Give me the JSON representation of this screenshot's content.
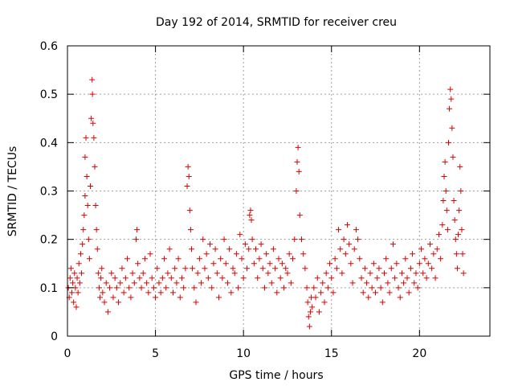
{
  "chart_data": {
    "type": "scatter",
    "title": "Day 192 of 2014, SRMTID for receiver creu",
    "xlabel": "GPS time / hours",
    "ylabel": "SRMTID / TECUs",
    "xlim": [
      0,
      24
    ],
    "ylim": [
      0,
      0.6
    ],
    "x_ticks": [
      0,
      5,
      10,
      15,
      20
    ],
    "x_tick_labels": [
      "0",
      "5",
      "10",
      "15",
      "20"
    ],
    "y_ticks": [
      0,
      0.1,
      0.2,
      0.3,
      0.4,
      0.5,
      0.6
    ],
    "y_tick_labels": [
      "0",
      "0.1",
      "0.2",
      "0.3",
      "0.4",
      "0.5",
      "0.6"
    ],
    "grid": true,
    "marker": "plus",
    "color": "#e00000",
    "series": [
      {
        "name": "SRMTID",
        "sampling": "representative subset of points read from the plot",
        "points": [
          [
            0.05,
            0.1
          ],
          [
            0.1,
            0.08
          ],
          [
            0.15,
            0.12
          ],
          [
            0.2,
            0.14
          ],
          [
            0.25,
            0.09
          ],
          [
            0.3,
            0.11
          ],
          [
            0.35,
            0.07
          ],
          [
            0.4,
            0.13
          ],
          [
            0.45,
            0.1
          ],
          [
            0.5,
            0.06
          ],
          [
            0.55,
            0.12
          ],
          [
            0.6,
            0.09
          ],
          [
            0.65,
            0.15
          ],
          [
            0.7,
            0.11
          ],
          [
            0.75,
            0.17
          ],
          [
            0.8,
            0.13
          ],
          [
            0.85,
            0.19
          ],
          [
            0.9,
            0.22
          ],
          [
            0.95,
            0.25
          ],
          [
            1.0,
            0.29
          ],
          [
            1.0,
            0.37
          ],
          [
            1.05,
            0.41
          ],
          [
            1.1,
            0.33
          ],
          [
            1.15,
            0.27
          ],
          [
            1.2,
            0.2
          ],
          [
            1.25,
            0.16
          ],
          [
            1.3,
            0.31
          ],
          [
            1.35,
            0.45
          ],
          [
            1.4,
            0.53
          ],
          [
            1.42,
            0.5
          ],
          [
            1.45,
            0.44
          ],
          [
            1.5,
            0.41
          ],
          [
            1.55,
            0.35
          ],
          [
            1.6,
            0.27
          ],
          [
            1.65,
            0.22
          ],
          [
            1.7,
            0.18
          ],
          [
            1.75,
            0.13
          ],
          [
            1.8,
            0.1
          ],
          [
            1.85,
            0.08
          ],
          [
            1.9,
            0.12
          ],
          [
            1.95,
            0.14
          ],
          [
            2.0,
            0.09
          ],
          [
            2.1,
            0.07
          ],
          [
            2.2,
            0.11
          ],
          [
            2.3,
            0.05
          ],
          [
            2.4,
            0.1
          ],
          [
            2.5,
            0.13
          ],
          [
            2.6,
            0.08
          ],
          [
            2.7,
            0.12
          ],
          [
            2.8,
            0.1
          ],
          [
            2.9,
            0.07
          ],
          [
            3.0,
            0.11
          ],
          [
            3.1,
            0.14
          ],
          [
            3.2,
            0.09
          ],
          [
            3.3,
            0.12
          ],
          [
            3.4,
            0.16
          ],
          [
            3.5,
            0.1
          ],
          [
            3.6,
            0.08
          ],
          [
            3.7,
            0.13
          ],
          [
            3.8,
            0.11
          ],
          [
            3.9,
            0.2
          ],
          [
            3.95,
            0.22
          ],
          [
            4.0,
            0.15
          ],
          [
            4.1,
            0.12
          ],
          [
            4.2,
            0.1
          ],
          [
            4.3,
            0.13
          ],
          [
            4.4,
            0.16
          ],
          [
            4.5,
            0.11
          ],
          [
            4.6,
            0.09
          ],
          [
            4.7,
            0.17
          ],
          [
            4.8,
            0.12
          ],
          [
            4.9,
            0.1
          ],
          [
            5.0,
            0.08
          ],
          [
            5.1,
            0.14
          ],
          [
            5.2,
            0.11
          ],
          [
            5.3,
            0.09
          ],
          [
            5.4,
            0.12
          ],
          [
            5.5,
            0.16
          ],
          [
            5.6,
            0.1
          ],
          [
            5.7,
            0.13
          ],
          [
            5.8,
            0.18
          ],
          [
            5.9,
            0.12
          ],
          [
            6.0,
            0.09
          ],
          [
            6.1,
            0.14
          ],
          [
            6.2,
            0.11
          ],
          [
            6.3,
            0.16
          ],
          [
            6.4,
            0.08
          ],
          [
            6.5,
            0.12
          ],
          [
            6.6,
            0.1
          ],
          [
            6.7,
            0.14
          ],
          [
            6.8,
            0.31
          ],
          [
            6.85,
            0.35
          ],
          [
            6.9,
            0.33
          ],
          [
            6.95,
            0.26
          ],
          [
            7.0,
            0.22
          ],
          [
            7.05,
            0.18
          ],
          [
            7.1,
            0.14
          ],
          [
            7.2,
            0.1
          ],
          [
            7.3,
            0.07
          ],
          [
            7.4,
            0.13
          ],
          [
            7.5,
            0.16
          ],
          [
            7.6,
            0.11
          ],
          [
            7.7,
            0.2
          ],
          [
            7.8,
            0.14
          ],
          [
            7.9,
            0.17
          ],
          [
            8.0,
            0.12
          ],
          [
            8.1,
            0.19
          ],
          [
            8.2,
            0.1
          ],
          [
            8.3,
            0.15
          ],
          [
            8.4,
            0.18
          ],
          [
            8.5,
            0.13
          ],
          [
            8.6,
            0.08
          ],
          [
            8.7,
            0.16
          ],
          [
            8.8,
            0.12
          ],
          [
            8.9,
            0.2
          ],
          [
            9.0,
            0.15
          ],
          [
            9.1,
            0.11
          ],
          [
            9.2,
            0.18
          ],
          [
            9.3,
            0.09
          ],
          [
            9.4,
            0.14
          ],
          [
            9.5,
            0.13
          ],
          [
            9.6,
            0.17
          ],
          [
            9.7,
            0.1
          ],
          [
            9.8,
            0.21
          ],
          [
            9.9,
            0.16
          ],
          [
            10.0,
            0.12
          ],
          [
            10.1,
            0.19
          ],
          [
            10.2,
            0.14
          ],
          [
            10.3,
            0.18
          ],
          [
            10.35,
            0.25
          ],
          [
            10.4,
            0.26
          ],
          [
            10.45,
            0.24
          ],
          [
            10.5,
            0.2
          ],
          [
            10.6,
            0.15
          ],
          [
            10.7,
            0.18
          ],
          [
            10.8,
            0.12
          ],
          [
            10.9,
            0.16
          ],
          [
            11.0,
            0.19
          ],
          [
            11.1,
            0.14
          ],
          [
            11.2,
            0.1
          ],
          [
            11.3,
            0.17
          ],
          [
            11.4,
            0.13
          ],
          [
            11.5,
            0.15
          ],
          [
            11.6,
            0.11
          ],
          [
            11.7,
            0.18
          ],
          [
            11.8,
            0.14
          ],
          [
            11.9,
            0.09
          ],
          [
            12.0,
            0.16
          ],
          [
            12.1,
            0.12
          ],
          [
            12.2,
            0.15
          ],
          [
            12.3,
            0.1
          ],
          [
            12.4,
            0.14
          ],
          [
            12.5,
            0.13
          ],
          [
            12.6,
            0.17
          ],
          [
            12.7,
            0.11
          ],
          [
            12.8,
            0.16
          ],
          [
            12.9,
            0.2
          ],
          [
            13.0,
            0.3
          ],
          [
            13.05,
            0.36
          ],
          [
            13.1,
            0.39
          ],
          [
            13.15,
            0.34
          ],
          [
            13.2,
            0.25
          ],
          [
            13.3,
            0.2
          ],
          [
            13.4,
            0.17
          ],
          [
            13.5,
            0.14
          ],
          [
            13.6,
            0.1
          ],
          [
            13.65,
            0.07
          ],
          [
            13.7,
            0.04
          ],
          [
            13.75,
            0.02
          ],
          [
            13.8,
            0.05
          ],
          [
            13.85,
            0.08
          ],
          [
            13.9,
            0.06
          ],
          [
            14.0,
            0.1
          ],
          [
            14.1,
            0.08
          ],
          [
            14.2,
            0.12
          ],
          [
            14.3,
            0.05
          ],
          [
            14.4,
            0.09
          ],
          [
            14.5,
            0.11
          ],
          [
            14.6,
            0.07
          ],
          [
            14.7,
            0.13
          ],
          [
            14.8,
            0.1
          ],
          [
            14.9,
            0.15
          ],
          [
            15.0,
            0.12
          ],
          [
            15.1,
            0.09
          ],
          [
            15.2,
            0.16
          ],
          [
            15.3,
            0.14
          ],
          [
            15.4,
            0.22
          ],
          [
            15.5,
            0.18
          ],
          [
            15.6,
            0.13
          ],
          [
            15.7,
            0.2
          ],
          [
            15.8,
            0.17
          ],
          [
            15.9,
            0.23
          ],
          [
            16.0,
            0.19
          ],
          [
            16.1,
            0.15
          ],
          [
            16.2,
            0.11
          ],
          [
            16.3,
            0.18
          ],
          [
            16.4,
            0.22
          ],
          [
            16.5,
            0.2
          ],
          [
            16.6,
            0.16
          ],
          [
            16.7,
            0.12
          ],
          [
            16.8,
            0.09
          ],
          [
            16.9,
            0.14
          ],
          [
            17.0,
            0.11
          ],
          [
            17.1,
            0.08
          ],
          [
            17.2,
            0.13
          ],
          [
            17.3,
            0.1
          ],
          [
            17.4,
            0.15
          ],
          [
            17.5,
            0.09
          ],
          [
            17.6,
            0.12
          ],
          [
            17.7,
            0.14
          ],
          [
            17.8,
            0.1
          ],
          [
            17.9,
            0.07
          ],
          [
            18.0,
            0.13
          ],
          [
            18.1,
            0.16
          ],
          [
            18.2,
            0.11
          ],
          [
            18.3,
            0.09
          ],
          [
            18.4,
            0.14
          ],
          [
            18.5,
            0.19
          ],
          [
            18.6,
            0.12
          ],
          [
            18.7,
            0.15
          ],
          [
            18.8,
            0.1
          ],
          [
            18.9,
            0.08
          ],
          [
            19.0,
            0.13
          ],
          [
            19.1,
            0.11
          ],
          [
            19.2,
            0.16
          ],
          [
            19.3,
            0.12
          ],
          [
            19.4,
            0.09
          ],
          [
            19.5,
            0.14
          ],
          [
            19.6,
            0.17
          ],
          [
            19.7,
            0.11
          ],
          [
            19.8,
            0.13
          ],
          [
            19.9,
            0.1
          ],
          [
            20.0,
            0.15
          ],
          [
            20.1,
            0.18
          ],
          [
            20.2,
            0.13
          ],
          [
            20.3,
            0.16
          ],
          [
            20.4,
            0.12
          ],
          [
            20.5,
            0.15
          ],
          [
            20.6,
            0.19
          ],
          [
            20.7,
            0.14
          ],
          [
            20.8,
            0.17
          ],
          [
            20.9,
            0.12
          ],
          [
            21.0,
            0.18
          ],
          [
            21.1,
            0.21
          ],
          [
            21.2,
            0.16
          ],
          [
            21.3,
            0.23
          ],
          [
            21.35,
            0.28
          ],
          [
            21.4,
            0.33
          ],
          [
            21.45,
            0.36
          ],
          [
            21.5,
            0.3
          ],
          [
            21.55,
            0.26
          ],
          [
            21.6,
            0.22
          ],
          [
            21.65,
            0.4
          ],
          [
            21.7,
            0.47
          ],
          [
            21.75,
            0.51
          ],
          [
            21.8,
            0.49
          ],
          [
            21.85,
            0.43
          ],
          [
            21.9,
            0.37
          ],
          [
            21.95,
            0.28
          ],
          [
            22.0,
            0.24
          ],
          [
            22.05,
            0.2
          ],
          [
            22.1,
            0.17
          ],
          [
            22.15,
            0.14
          ],
          [
            22.2,
            0.21
          ],
          [
            22.25,
            0.26
          ],
          [
            22.3,
            0.35
          ],
          [
            22.35,
            0.3
          ],
          [
            22.4,
            0.22
          ],
          [
            22.45,
            0.17
          ],
          [
            22.5,
            0.13
          ]
        ]
      }
    ]
  }
}
